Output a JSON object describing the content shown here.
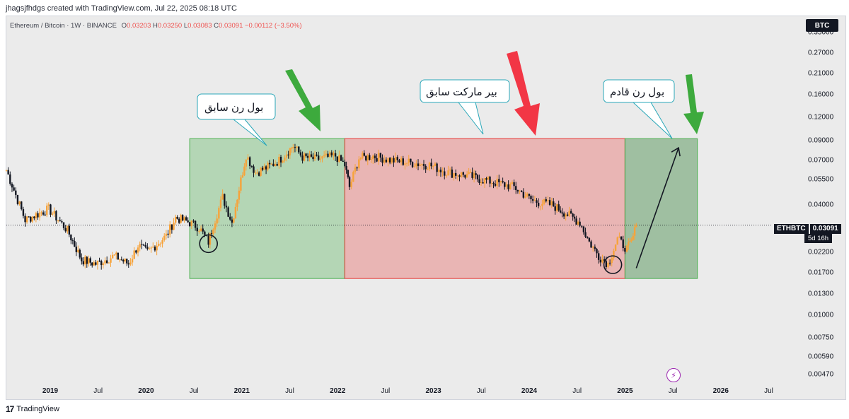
{
  "attribution": "jhagsjfhdgs created with TradingView.com, Jul 22, 2025 08:18 UTC",
  "symbol": {
    "name": "Ethereum / Bitcoin · 1W · BINANCE",
    "open_label": "O",
    "open": "0.03203",
    "high_label": "H",
    "high": "0.03250",
    "low_label": "L",
    "low": "0.03083",
    "close_label": "C",
    "close": "0.03091",
    "change": "−0.00112 (−3.50%)"
  },
  "currency_badge": "BTC",
  "last_price": {
    "ticker": "ETHBTC",
    "value": "0.03091",
    "countdown": "5d 16h"
  },
  "footer": {
    "brand": "TradingView",
    "logo_glyph": "17"
  },
  "colors": {
    "up": "#f7a33a",
    "down": "#131722",
    "bull_zone": "#4caf50",
    "bear_zone": "#e53935",
    "arrow_green": "#3daa3d",
    "arrow_red": "#f23645"
  },
  "annotations": [
    {
      "text": "بول رن سابق"
    },
    {
      "text": "بیر مارکت سابق"
    },
    {
      "text": "بول رن قادم"
    }
  ],
  "chart_data": {
    "type": "candlestick",
    "timeframe": "1W",
    "y_scale": "log",
    "ylim": [
      0.0042,
      0.43
    ],
    "y_ticks": [
      "0.35000",
      "0.27000",
      "0.21000",
      "0.16000",
      "0.12000",
      "0.09000",
      "0.07000",
      "0.05500",
      "0.04000",
      "0.03091",
      "0.02200",
      "0.01700",
      "0.01300",
      "0.01000",
      "0.00750",
      "0.00590",
      "0.00470"
    ],
    "x_ticks": [
      "2019",
      "Jul",
      "2020",
      "Jul",
      "2021",
      "Jul",
      "2022",
      "Jul",
      "2023",
      "Jul",
      "2024",
      "Jul",
      "2025",
      "Jul",
      "2026",
      "Jul"
    ],
    "x_tick_years": [
      true,
      false,
      true,
      false,
      true,
      false,
      true,
      false,
      true,
      false,
      true,
      false,
      true,
      false,
      true,
      false
    ],
    "xlim": [
      2018.8,
      2026.95
    ],
    "series": [
      {
        "x": [
          2018.8,
          2019.0,
          2019.25,
          2019.45,
          2019.6,
          2019.75,
          2019.95,
          2020.1,
          2020.2,
          2020.3,
          2020.5,
          2020.6,
          2020.75,
          2020.85,
          2020.95,
          2021.0,
          2021.1,
          2021.2,
          2021.35,
          2021.45,
          2021.6,
          2021.7,
          2021.8,
          2021.85,
          2021.95,
          2022.1,
          2022.3,
          2022.4,
          2022.45,
          2022.55,
          2022.7,
          2022.9,
          2023.1,
          2023.3,
          2023.5,
          2023.7,
          2023.85,
          2024.0,
          2024.2,
          2024.4,
          2024.6,
          2024.75,
          2024.9,
          2025.0,
          2025.1,
          2025.2,
          2025.3,
          2025.4,
          2025.45,
          2025.5
        ],
        "close": [
          0.062,
          0.033,
          0.038,
          0.029,
          0.02,
          0.019,
          0.021,
          0.019,
          0.024,
          0.022,
          0.027,
          0.034,
          0.032,
          0.03,
          0.025,
          0.031,
          0.044,
          0.032,
          0.075,
          0.06,
          0.065,
          0.07,
          0.079,
          0.084,
          0.073,
          0.071,
          0.074,
          0.066,
          0.05,
          0.072,
          0.074,
          0.07,
          0.068,
          0.066,
          0.06,
          0.058,
          0.055,
          0.053,
          0.05,
          0.042,
          0.04,
          0.036,
          0.032,
          0.025,
          0.021,
          0.019,
          0.026,
          0.023,
          0.025,
          0.0309
        ]
      }
    ],
    "zones": [
      {
        "label": "بول رن سابق",
        "x0": 2020.75,
        "x1": 2022.4,
        "y0": 0.0158,
        "y1": 0.092
      },
      {
        "label": "بیر مارکت سابق",
        "x0": 2022.4,
        "x1": 2025.38,
        "y0": 0.0158,
        "y1": 0.092
      },
      {
        "label": "بول رن قادم",
        "x0": 2025.38,
        "x1": 2026.15,
        "y0": 0.0158,
        "y1": 0.092
      }
    ],
    "circled_lows": [
      {
        "x": 2020.95,
        "y": 0.0245
      },
      {
        "x": 2025.25,
        "y": 0.0188
      }
    ],
    "projection_arrow": {
      "from": {
        "x": 2025.5,
        "y": 0.018
      },
      "to": {
        "x": 2025.95,
        "y": 0.082
      }
    },
    "current_price_line": 0.03091
  }
}
